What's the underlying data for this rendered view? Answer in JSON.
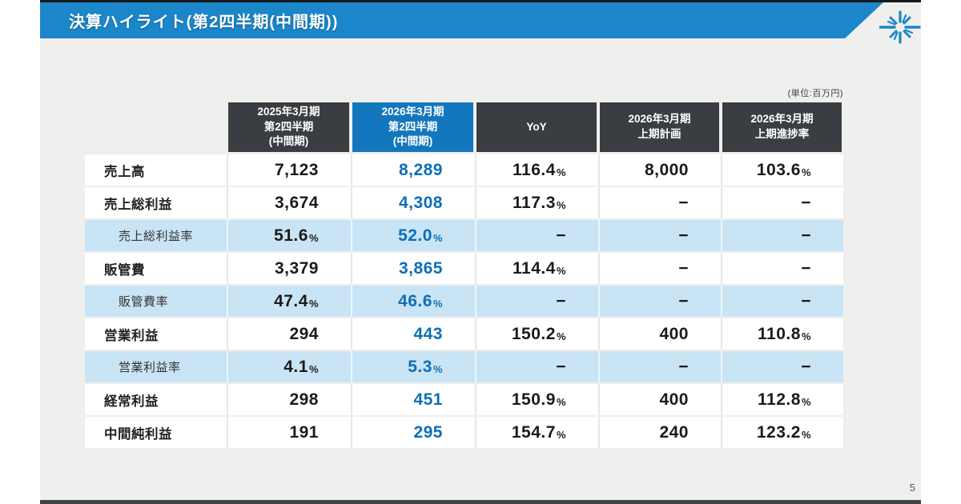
{
  "slide": {
    "title": "決算ハイライト(第2四半期(中間期))",
    "unit_note": "(単位:百万円)",
    "page_number": "5"
  },
  "colors": {
    "title_bar_blue": "#1b86c9",
    "accent_column_blue": "#1377bd",
    "value_text_blue": "#0d6fb6",
    "dark_header_cell": "#3a3e42",
    "highlight_row_blue": "#c9e4f5",
    "slide_background": "#efefed",
    "bottom_bar": "#3f4347"
  },
  "table": {
    "columns": [
      {
        "label": "",
        "accent": false
      },
      {
        "label": "2025年3月期\n第2四半期\n(中間期)",
        "accent": false
      },
      {
        "label": "2026年3月期\n第2四半期\n(中間期)",
        "accent": true
      },
      {
        "label": "YoY",
        "accent": false
      },
      {
        "label": "2026年3月期\n上期計画",
        "accent": false
      },
      {
        "label": "2026年3月期\n上期進捗率",
        "accent": false
      }
    ],
    "rows": [
      {
        "label": "売上高",
        "sub": false,
        "values": [
          "7,123",
          "8,289",
          "116.4%",
          "8,000",
          "103.6%"
        ]
      },
      {
        "label": "売上総利益",
        "sub": false,
        "values": [
          "3,674",
          "4,308",
          "117.3%",
          "−",
          "−"
        ]
      },
      {
        "label": "売上総利益率",
        "sub": true,
        "values": [
          "51.6%",
          "52.0%",
          "−",
          "−",
          "−"
        ]
      },
      {
        "label": "販管費",
        "sub": false,
        "values": [
          "3,379",
          "3,865",
          "114.4%",
          "−",
          "−"
        ]
      },
      {
        "label": "販管費率",
        "sub": true,
        "values": [
          "47.4%",
          "46.6%",
          "−",
          "−",
          "−"
        ]
      },
      {
        "label": "営業利益",
        "sub": false,
        "values": [
          "294",
          "443",
          "150.2%",
          "400",
          "110.8%"
        ]
      },
      {
        "label": "営業利益率",
        "sub": true,
        "values": [
          "4.1%",
          "5.3%",
          "−",
          "−",
          "−"
        ]
      },
      {
        "label": "経常利益",
        "sub": false,
        "values": [
          "298",
          "451",
          "150.9%",
          "400",
          "112.8%"
        ]
      },
      {
        "label": "中間純利益",
        "sub": false,
        "values": [
          "191",
          "295",
          "154.7%",
          "240",
          "123.2%"
        ]
      }
    ]
  }
}
